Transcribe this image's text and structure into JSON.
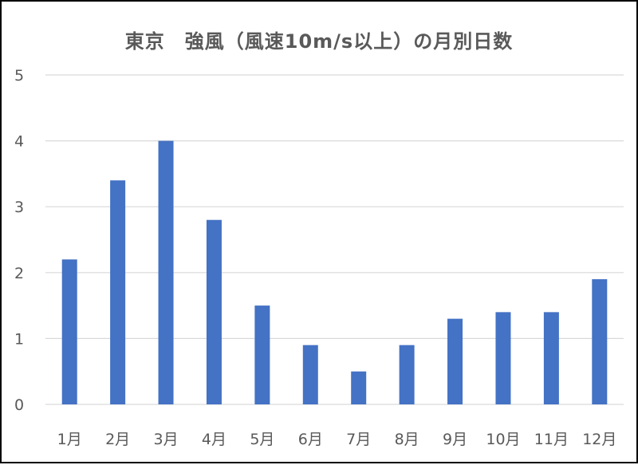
{
  "chart_data": {
    "type": "bar",
    "title": "東京　強風（風速10m/s以上）の月別日数",
    "xlabel": "",
    "ylabel": "",
    "categories": [
      "1月",
      "2月",
      "3月",
      "4月",
      "5月",
      "6月",
      "7月",
      "8月",
      "9月",
      "10月",
      "11月",
      "12月"
    ],
    "values": [
      2.2,
      3.4,
      4.0,
      2.8,
      1.5,
      0.9,
      0.5,
      0.9,
      1.3,
      1.4,
      1.4,
      1.9
    ],
    "ylim": [
      0,
      5
    ],
    "yticks": [
      "0",
      "1",
      "2",
      "3",
      "4",
      "5"
    ],
    "grid": true,
    "colors": {
      "bar": "#4472C4",
      "grid": "#D9D9D9",
      "text": "#595959",
      "border": "#000000"
    }
  }
}
